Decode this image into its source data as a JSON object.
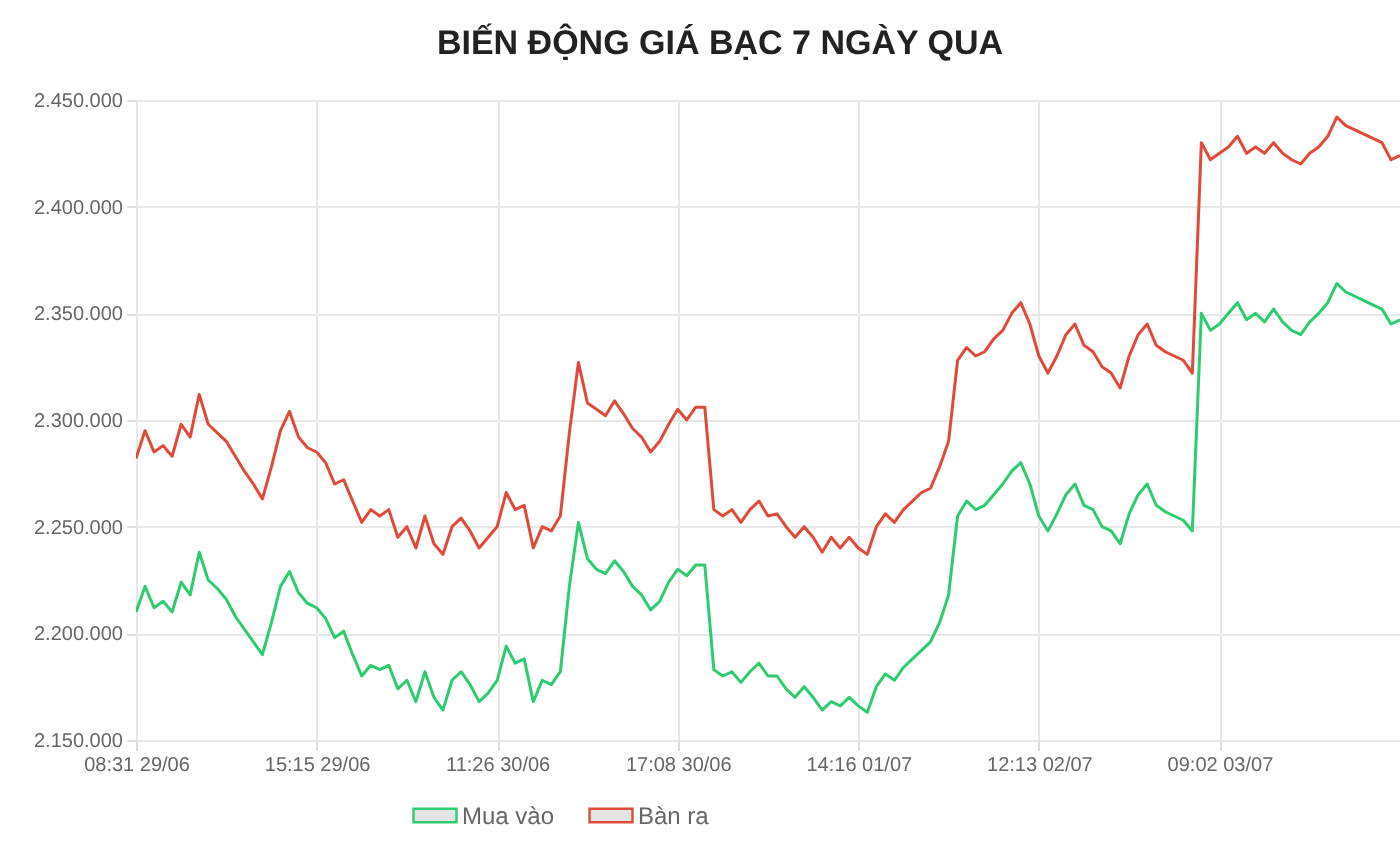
{
  "chart_data": {
    "type": "line",
    "title": "BIẾN ĐỘNG GIÁ BẠC 7 NGÀY QUA",
    "categories": [
      "08:31 29/06",
      null,
      null,
      null,
      null,
      null,
      null,
      null,
      null,
      null,
      null,
      null,
      null,
      null,
      null,
      null,
      null,
      null,
      null,
      null,
      "15:15 29/06",
      null,
      null,
      null,
      null,
      null,
      null,
      null,
      null,
      null,
      null,
      null,
      null,
      null,
      null,
      null,
      null,
      null,
      null,
      null,
      "11:26 30/06",
      null,
      null,
      null,
      null,
      null,
      null,
      null,
      null,
      null,
      null,
      null,
      null,
      null,
      null,
      null,
      null,
      null,
      null,
      null,
      "17:08 30/06",
      null,
      null,
      null,
      null,
      null,
      null,
      null,
      null,
      null,
      null,
      null,
      null,
      null,
      null,
      null,
      null,
      null,
      null,
      null,
      "14:16 01/07",
      null,
      null,
      null,
      null,
      null,
      null,
      null,
      null,
      null,
      null,
      null,
      null,
      null,
      null,
      null,
      null,
      null,
      null,
      null,
      "12:13 02/07",
      null,
      null,
      null,
      null,
      null,
      null,
      null,
      null,
      null,
      null,
      null,
      null,
      null,
      null,
      null,
      null,
      null,
      null,
      null,
      "09:02 03/07",
      null,
      null,
      null,
      null,
      null,
      null,
      null,
      null,
      null,
      null,
      null,
      null,
      null,
      null,
      null,
      null,
      null,
      null,
      null,
      null
    ],
    "series": [
      {
        "name": "Mua vào",
        "color": "#2ecc71",
        "values": [
          2210000,
          2222000,
          2212000,
          2215000,
          2210000,
          2224000,
          2218000,
          2238000,
          2225000,
          2221000,
          2216000,
          2208000,
          2202000,
          2196000,
          2190000,
          2205000,
          2222000,
          2229000,
          2219000,
          2214000,
          2212000,
          2207000,
          2198000,
          2201000,
          2190000,
          2180000,
          2185000,
          2183000,
          2185000,
          2174000,
          2178000,
          2168000,
          2182000,
          2170000,
          2164000,
          2178000,
          2182000,
          2176000,
          2168000,
          2172000,
          2178000,
          2194000,
          2186000,
          2188000,
          2168000,
          2178000,
          2176000,
          2182000,
          2222000,
          2252000,
          2235000,
          2230000,
          2228000,
          2234000,
          2229000,
          2222000,
          2218000,
          2211000,
          2215000,
          2224000,
          2230000,
          2227000,
          2232000,
          2232000,
          2183000,
          2180000,
          2182000,
          2177000,
          2182000,
          2186000,
          2180000,
          2180000,
          2174000,
          2170000,
          2175000,
          2170000,
          2164000,
          2168000,
          2166000,
          2170000,
          2166000,
          2163000,
          2175000,
          2181000,
          2178000,
          2184000,
          2188000,
          2192000,
          2196000,
          2205000,
          2218000,
          2255000,
          2262000,
          2258000,
          2260000,
          2265000,
          2270000,
          2276000,
          2280000,
          2270000,
          2255000,
          2248000,
          2256000,
          2265000,
          2270000,
          2260000,
          2258000,
          2250000,
          2248000,
          2242000,
          2256000,
          2265000,
          2270000,
          2260000,
          2257000,
          2255000,
          2253000,
          2248000,
          2350000,
          2342000,
          2345000,
          2350000,
          2355000,
          2347000,
          2350000,
          2346000,
          2352000,
          2346000,
          2342000,
          2340000,
          2346000,
          2350000,
          2355000,
          2364000,
          2360000,
          2358000,
          2356000,
          2354000,
          2352000,
          2345000,
          2347000
        ]
      },
      {
        "name": "Bàn ra",
        "color": "#e04a3a",
        "values": [
          2282000,
          2295000,
          2285000,
          2288000,
          2283000,
          2298000,
          2292000,
          2312000,
          2298000,
          2294000,
          2290000,
          2283000,
          2276000,
          2270000,
          2263000,
          2278000,
          2295000,
          2304000,
          2292000,
          2287000,
          2285000,
          2280000,
          2270000,
          2272000,
          2262000,
          2252000,
          2258000,
          2255000,
          2258000,
          2245000,
          2250000,
          2240000,
          2255000,
          2242000,
          2237000,
          2250000,
          2254000,
          2248000,
          2240000,
          2245000,
          2250000,
          2266000,
          2258000,
          2260000,
          2240000,
          2250000,
          2248000,
          2255000,
          2294000,
          2327000,
          2308000,
          2305000,
          2302000,
          2309000,
          2303000,
          2296000,
          2292000,
          2285000,
          2290000,
          2298000,
          2305000,
          2300000,
          2306000,
          2306000,
          2258000,
          2255000,
          2258000,
          2252000,
          2258000,
          2262000,
          2255000,
          2256000,
          2250000,
          2245000,
          2250000,
          2245000,
          2238000,
          2245000,
          2240000,
          2245000,
          2240000,
          2237000,
          2250000,
          2256000,
          2252000,
          2258000,
          2262000,
          2266000,
          2268000,
          2278000,
          2290000,
          2328000,
          2334000,
          2330000,
          2332000,
          2338000,
          2342000,
          2350000,
          2355000,
          2345000,
          2330000,
          2322000,
          2330000,
          2340000,
          2345000,
          2335000,
          2332000,
          2325000,
          2322000,
          2315000,
          2330000,
          2340000,
          2345000,
          2335000,
          2332000,
          2330000,
          2328000,
          2322000,
          2430000,
          2422000,
          2425000,
          2428000,
          2433000,
          2425000,
          2428000,
          2425000,
          2430000,
          2425000,
          2422000,
          2420000,
          2425000,
          2428000,
          2433000,
          2442000,
          2438000,
          2436000,
          2434000,
          2432000,
          2430000,
          2422000,
          2424000
        ]
      }
    ],
    "ylim": [
      2150000,
      2450000
    ],
    "yticks": [
      {
        "value": 2150000,
        "label": "2.150.000"
      },
      {
        "value": 2200000,
        "label": "2.200.000"
      },
      {
        "value": 2250000,
        "label": "2.250.000"
      },
      {
        "value": 2300000,
        "label": "2.300.000"
      },
      {
        "value": 2350000,
        "label": "2.350.000"
      },
      {
        "value": 2400000,
        "label": "2.400.000"
      },
      {
        "value": 2450000,
        "label": "2.450.000"
      }
    ],
    "grid": true,
    "legend": "bottom",
    "marker": "none",
    "line_style": "solid"
  }
}
